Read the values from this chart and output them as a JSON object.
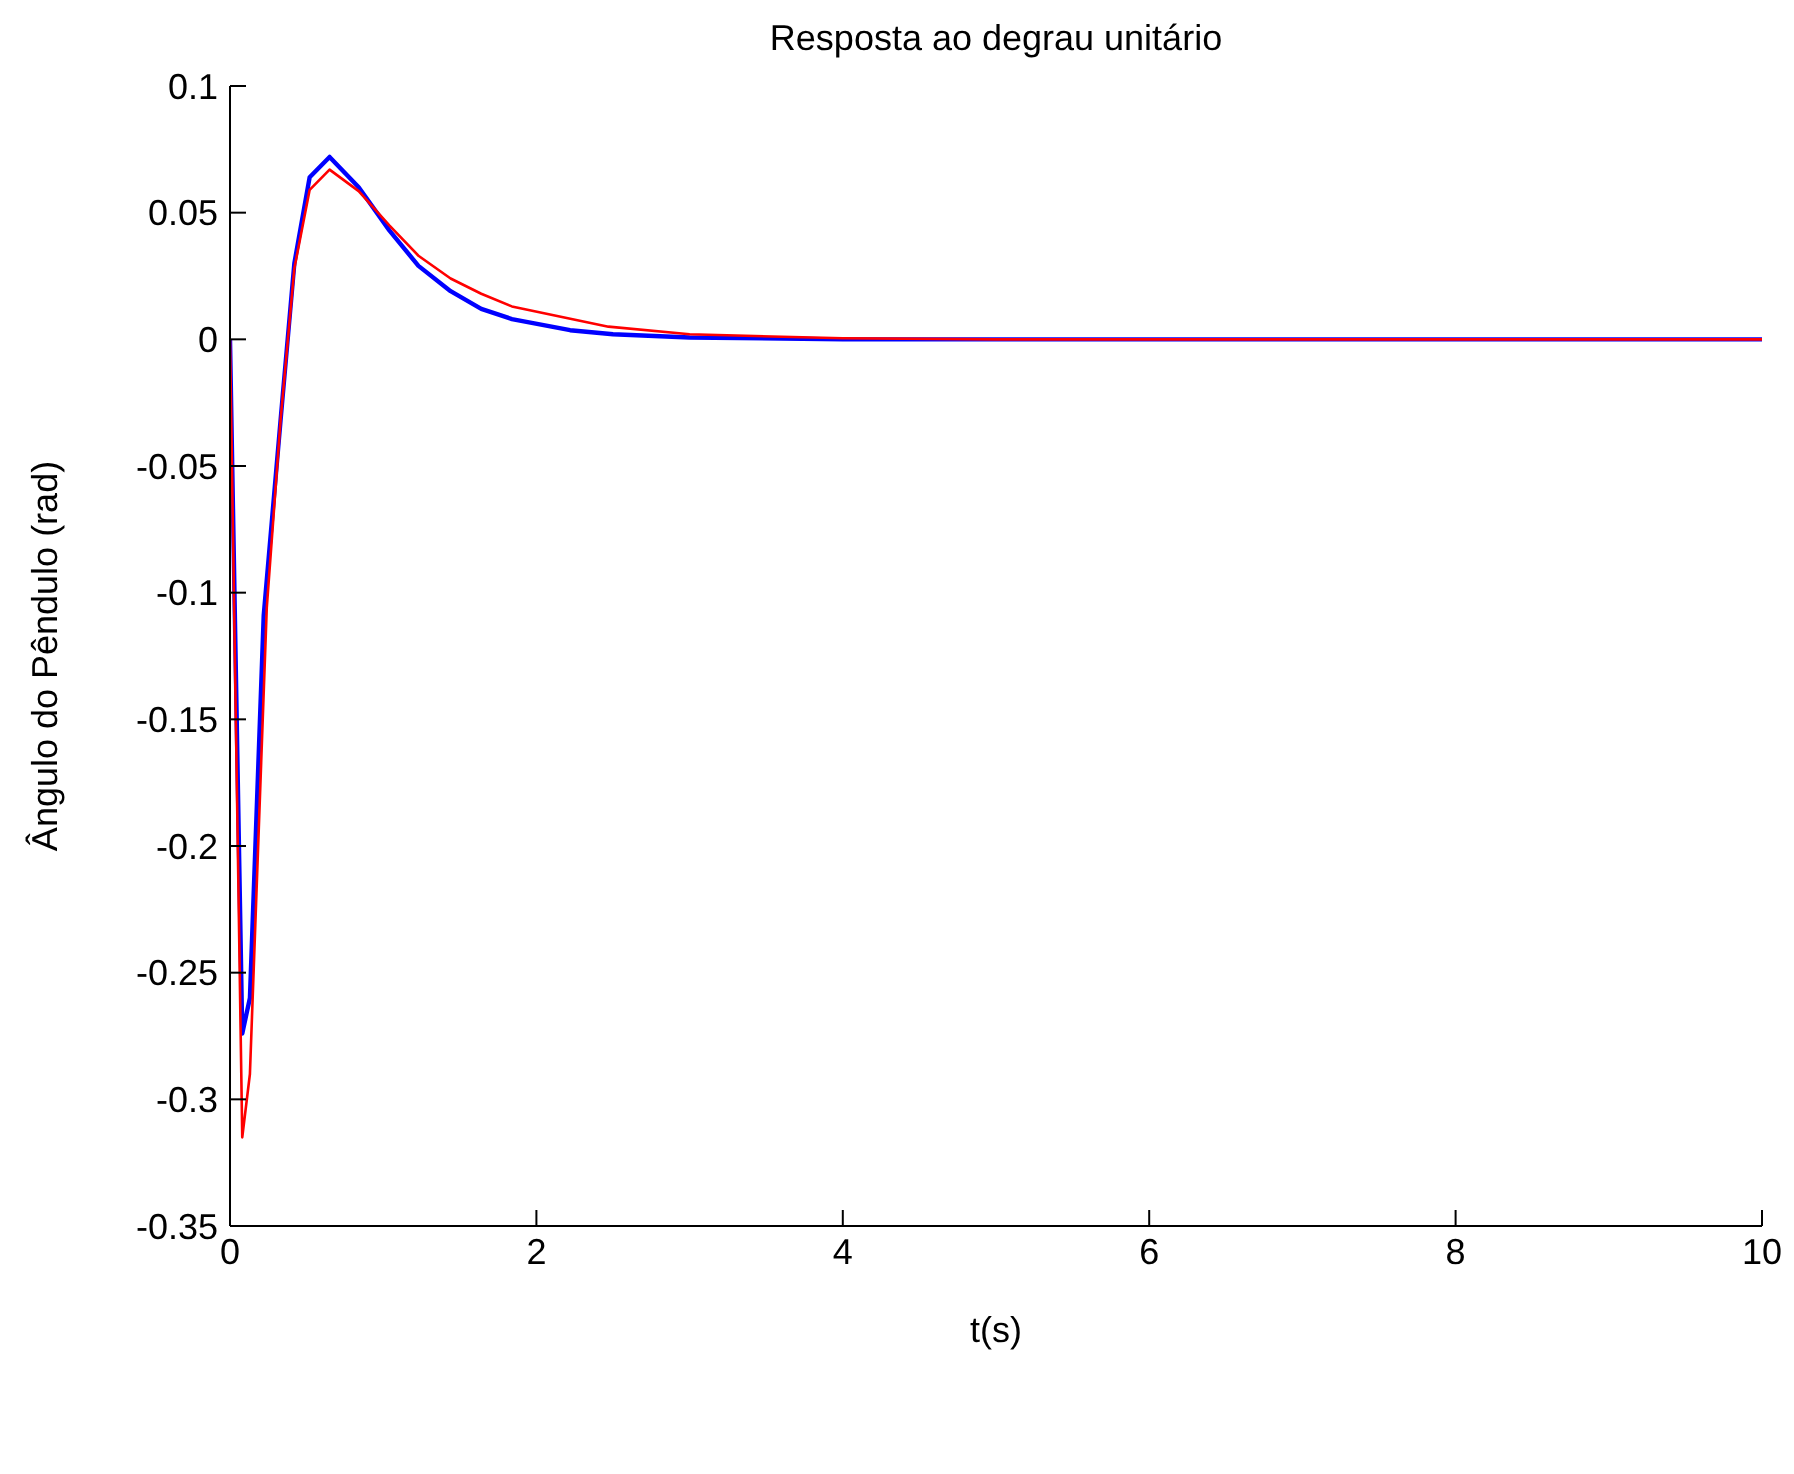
{
  "chart_data": {
    "type": "line",
    "title": "Resposta ao degrau unitário",
    "xlabel": "t(s)",
    "ylabel": "Ângulo do Pêndulo (rad)",
    "xlim": [
      0,
      10
    ],
    "xticks": [
      0,
      2,
      4,
      6,
      8,
      10
    ],
    "ylim": [
      -0.35,
      0.1
    ],
    "yticks": [
      -0.35,
      -0.3,
      -0.25,
      -0.2,
      -0.15,
      -0.1,
      -0.05,
      0,
      0.05,
      0.1
    ],
    "grid": false,
    "legend": false,
    "marker": "none",
    "line_style": "solid",
    "series": [
      {
        "color": "#0000ff",
        "x": [
          0,
          0.08,
          0.13,
          0.22,
          0.33,
          0.42,
          0.52,
          0.65,
          0.84,
          1.04,
          1.23,
          1.44,
          1.64,
          1.84,
          2.22,
          2.5,
          3,
          4,
          5,
          10
        ],
        "values": [
          0,
          -0.274,
          -0.26,
          -0.109,
          -0.032,
          0.03,
          0.064,
          0.072,
          0.06,
          0.043,
          0.029,
          0.019,
          0.012,
          0.008,
          0.0036,
          0.002,
          0.0007,
          0,
          0,
          0
        ]
      },
      {
        "color": "#ff0000",
        "x": [
          0,
          0.08,
          0.13,
          0.24,
          0.33,
          0.42,
          0.52,
          0.65,
          0.84,
          1.04,
          1.23,
          1.44,
          1.64,
          1.84,
          2.47,
          3,
          4,
          5,
          10
        ],
        "values": [
          0,
          -0.315,
          -0.29,
          -0.106,
          -0.032,
          0.028,
          0.059,
          0.067,
          0.0585,
          0.045,
          0.033,
          0.024,
          0.018,
          0.013,
          0.005,
          0.002,
          0.0004,
          0,
          0
        ]
      }
    ]
  }
}
